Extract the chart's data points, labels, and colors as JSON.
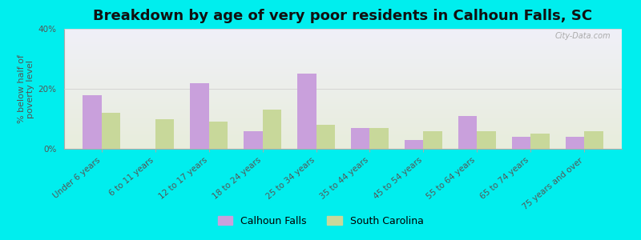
{
  "title": "Breakdown by age of very poor residents in Calhoun Falls, SC",
  "ylabel": "% below half of\npoverty level",
  "categories": [
    "Under 6 years",
    "6 to 11 years",
    "12 to 17 years",
    "18 to 24 years",
    "25 to 34 years",
    "35 to 44 years",
    "45 to 54 years",
    "55 to 64 years",
    "65 to 74 years",
    "75 years and over"
  ],
  "calhoun_falls": [
    18,
    0,
    22,
    6,
    25,
    7,
    3,
    11,
    4,
    4
  ],
  "south_carolina": [
    12,
    10,
    9,
    13,
    8,
    7,
    6,
    6,
    5,
    6
  ],
  "bar_color_calhoun": "#c9a0dc",
  "bar_color_sc": "#c8d89a",
  "background_outer": "#00eeee",
  "background_plot_top": "#f0f0f8",
  "background_plot_bottom": "#e8eddc",
  "ylim": [
    0,
    40
  ],
  "yticks": [
    0,
    20,
    40
  ],
  "ytick_labels": [
    "0%",
    "20%",
    "40%"
  ],
  "bar_width": 0.35,
  "title_fontsize": 13,
  "axis_label_fontsize": 8,
  "tick_fontsize": 7.5,
  "legend_labels": [
    "Calhoun Falls",
    "South Carolina"
  ],
  "watermark": "City-Data.com",
  "figsize": [
    8.0,
    3.0
  ],
  "dpi": 100
}
